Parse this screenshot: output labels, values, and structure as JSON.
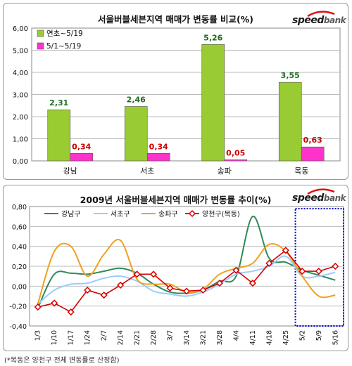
{
  "brand": {
    "name_part1": "speed",
    "name_part2": "bank"
  },
  "footnote": "(*목동은 양천구 전체 변동률로 산정함)",
  "chart_data": [
    {
      "type": "bar",
      "title": "서울버블세븐지역 매매가 변동률 비교(%)",
      "categories": [
        "강남",
        "서초",
        "송파",
        "목동"
      ],
      "series": [
        {
          "name": "연초~5/19",
          "values": [
            2.31,
            2.46,
            5.26,
            3.55
          ],
          "color": "#99cc33",
          "label_color": "#1f6b1f"
        },
        {
          "name": "5/1~5/19",
          "values": [
            0.34,
            0.34,
            0.05,
            0.63
          ],
          "color": "#ff33cc",
          "label_color": "#cc0000"
        }
      ],
      "y_ticks": [
        "0,00",
        "1,00",
        "2,00",
        "3,00",
        "4,00",
        "5,00",
        "6,00"
      ],
      "ylim": [
        0,
        6
      ],
      "data_labels": [
        [
          "2,31",
          "2,46",
          "5,26",
          "3,55"
        ],
        [
          "0,34",
          "0,34",
          "0,05",
          "0,63"
        ]
      ],
      "grid": true,
      "legend": "top-left"
    },
    {
      "type": "line",
      "title": "2009년 서울버블세븐지역 매매가 변동률 추이(%)",
      "x": [
        "1/3",
        "1/10",
        "1/17",
        "1/24",
        "2/7",
        "2/14",
        "2/21",
        "2/28",
        "3/7",
        "3/14",
        "3/21",
        "3/28",
        "4/4",
        "4/11",
        "4/18",
        "4/25",
        "5/2",
        "5/9",
        "5/16"
      ],
      "series": [
        {
          "name": "강남구",
          "color": "#2e8b57",
          "values": [
            -0.22,
            0.12,
            0.13,
            0.12,
            0.15,
            0.18,
            0.13,
            0.02,
            -0.06,
            -0.07,
            -0.04,
            0.05,
            0.1,
            0.7,
            0.28,
            0.24,
            0.16,
            0.11,
            0.06
          ]
        },
        {
          "name": "서초구",
          "color": "#99ccff",
          "values": [
            -0.18,
            -0.04,
            0.02,
            0.03,
            0.08,
            0.1,
            0.05,
            -0.05,
            -0.08,
            -0.1,
            -0.06,
            0.02,
            0.12,
            0.15,
            0.2,
            0.3,
            0.1,
            0.1,
            0.14
          ]
        },
        {
          "name": "송파구",
          "color": "#f0a020",
          "values": [
            -0.18,
            0.35,
            0.4,
            0.1,
            0.32,
            0.46,
            0.07,
            0.02,
            0.02,
            -0.06,
            -0.03,
            0.12,
            0.18,
            0.23,
            0.42,
            0.35,
            0.1,
            -0.1,
            -0.09
          ]
        },
        {
          "name": "양천구(목동)",
          "color": "#d60000",
          "values": [
            -0.21,
            -0.17,
            -0.26,
            -0.04,
            -0.09,
            0.01,
            0.12,
            0.12,
            -0.02,
            -0.05,
            -0.04,
            0.03,
            0.16,
            0.03,
            0.23,
            0.36,
            0.15,
            0.15,
            0.2
          ]
        }
      ],
      "y_ticks": [
        "-0,40",
        "-0,20",
        "0,00",
        "0,20",
        "0,40",
        "0,60",
        "0,80"
      ],
      "ylim": [
        -0.4,
        0.8
      ],
      "grid": true,
      "legend": "top",
      "highlight_x": [
        "5/2",
        "5/16"
      ]
    }
  ]
}
